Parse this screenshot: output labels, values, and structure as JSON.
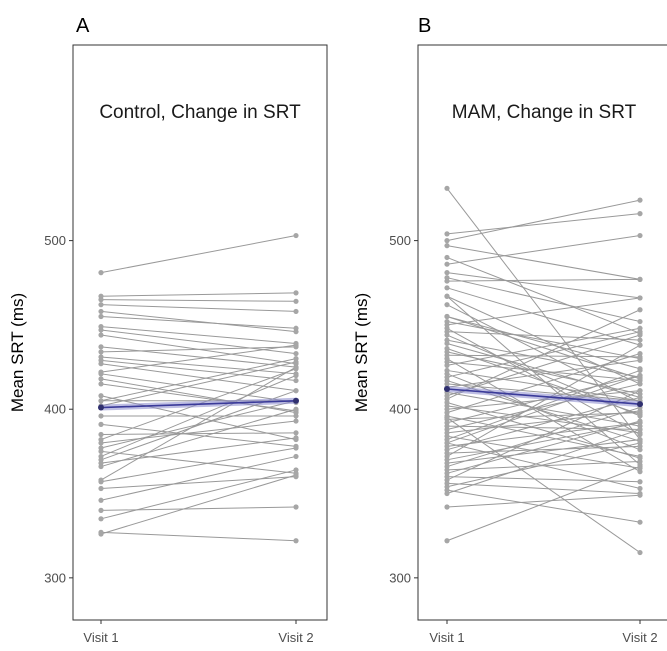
{
  "chart_data": [
    {
      "type": "line",
      "panel_label": "A",
      "title": "Control, Change in SRT",
      "ylabel": "Mean SRT  (ms)",
      "categories": [
        "Visit 1",
        "Visit 2"
      ],
      "ylim": [
        275,
        616
      ],
      "yticks": [
        300,
        400,
        500
      ],
      "mean": {
        "visit1": 401,
        "visit2": 405,
        "color": "#3a3a99"
      },
      "subjects": [
        [
          481,
          503
        ],
        [
          467,
          469
        ],
        [
          465,
          464
        ],
        [
          462,
          458
        ],
        [
          458,
          446
        ],
        [
          455,
          448
        ],
        [
          449,
          439
        ],
        [
          447,
          433
        ],
        [
          444,
          427
        ],
        [
          437,
          425
        ],
        [
          434,
          437
        ],
        [
          431,
          421
        ],
        [
          429,
          417
        ],
        [
          427,
          411
        ],
        [
          422,
          438
        ],
        [
          421,
          404
        ],
        [
          418,
          398
        ],
        [
          415,
          399
        ],
        [
          408,
          382
        ],
        [
          405,
          430
        ],
        [
          405,
          405
        ],
        [
          402,
          428
        ],
        [
          396,
          396
        ],
        [
          391,
          378
        ],
        [
          385,
          386
        ],
        [
          382,
          424
        ],
        [
          380,
          393
        ],
        [
          377,
          405
        ],
        [
          375,
          362
        ],
        [
          372,
          420
        ],
        [
          370,
          411
        ],
        [
          368,
          383
        ],
        [
          366,
          400
        ],
        [
          358,
          425
        ],
        [
          357,
          377
        ],
        [
          353,
          360
        ],
        [
          346,
          372
        ],
        [
          340,
          342
        ],
        [
          335,
          364
        ],
        [
          327,
          322
        ],
        [
          326,
          361
        ]
      ]
    },
    {
      "type": "line",
      "panel_label": "B",
      "title": "MAM, Change in SRT",
      "ylabel": "Mean SRT  (ms)",
      "categories": [
        "Visit 1",
        "Visit 2"
      ],
      "ylim": [
        275,
        616
      ],
      "yticks": [
        300,
        400,
        500
      ],
      "mean": {
        "visit1": 412,
        "visit2": 403,
        "color": "#3a3a99"
      },
      "subjects": [
        [
          531,
          382
        ],
        [
          504,
          516
        ],
        [
          500,
          524
        ],
        [
          497,
          477
        ],
        [
          490,
          445
        ],
        [
          486,
          503
        ],
        [
          481,
          466
        ],
        [
          478,
          452
        ],
        [
          476,
          477
        ],
        [
          472,
          438
        ],
        [
          467,
          415
        ],
        [
          462,
          404
        ],
        [
          455,
          424
        ],
        [
          452,
          430
        ],
        [
          450,
          466
        ],
        [
          448,
          385
        ],
        [
          446,
          441
        ],
        [
          444,
          396
        ],
        [
          441,
          419
        ],
        [
          439,
          407
        ],
        [
          436,
          397
        ],
        [
          434,
          409
        ],
        [
          432,
          431
        ],
        [
          430,
          363
        ],
        [
          428,
          417
        ],
        [
          426,
          448
        ],
        [
          423,
          405
        ],
        [
          421,
          376
        ],
        [
          419,
          446
        ],
        [
          417,
          381
        ],
        [
          415,
          405
        ],
        [
          413,
          429
        ],
        [
          412,
          403
        ],
        [
          410,
          390
        ],
        [
          408,
          444
        ],
        [
          406,
          459
        ],
        [
          404,
          371
        ],
        [
          402,
          386
        ],
        [
          400,
          411
        ],
        [
          398,
          433
        ],
        [
          396,
          372
        ],
        [
          394,
          398
        ],
        [
          392,
          420
        ],
        [
          390,
          388
        ],
        [
          388,
          415
        ],
        [
          386,
          399
        ],
        [
          384,
          365
        ],
        [
          382,
          423
        ],
        [
          380,
          353
        ],
        [
          378,
          392
        ],
        [
          376,
          407
        ],
        [
          374,
          378
        ],
        [
          372,
          438
        ],
        [
          370,
          392
        ],
        [
          368,
          382
        ],
        [
          366,
          401
        ],
        [
          364,
          369
        ],
        [
          362,
          393
        ],
        [
          360,
          357
        ],
        [
          358,
          411
        ],
        [
          356,
          350
        ],
        [
          354,
          380
        ],
        [
          352,
          333
        ],
        [
          350,
          388
        ],
        [
          342,
          349
        ],
        [
          322,
          366
        ],
        [
          395,
          315
        ],
        [
          455,
          418
        ],
        [
          380,
          420
        ],
        [
          467,
          367
        ]
      ]
    }
  ]
}
